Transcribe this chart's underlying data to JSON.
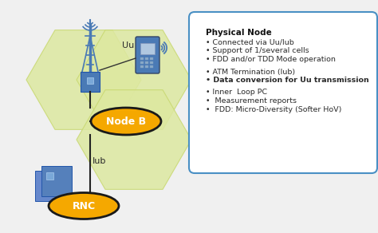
{
  "bg_color": "#f0f0f0",
  "hex_color_fill": "#dde8a0",
  "hex_color_edge": "#c8d870",
  "node_b_color": "#f5a800",
  "rnc_color": "#f5a800",
  "ellipse_edge": "#1a1a1a",
  "text_dark": "#2a2a2a",
  "box_bg": "#ffffff",
  "box_border": "#4a90c4",
  "tower_color": "#4a7ab5",
  "phone_color": "#4a7ab5",
  "rnc_device_color": "#5580bb",
  "title": "Physical Node",
  "line1": "• Connected via Uu/Iub",
  "line2": "• Support of 1/several cells",
  "line3": "• FDD and/or TDD Mode operation",
  "line4": "• ATM Termination (Iub)",
  "line5": "• Data conversion for Uu transmission",
  "line6": "• Inner  Loop PC",
  "line7": "•  Measurement reports",
  "line8": "•  FDD: Micro-Diversity (Softer HoV)",
  "node_b_label": "Node B",
  "rnc_label": "RNC",
  "uu_label": "Uu",
  "iub_label": "Iub"
}
